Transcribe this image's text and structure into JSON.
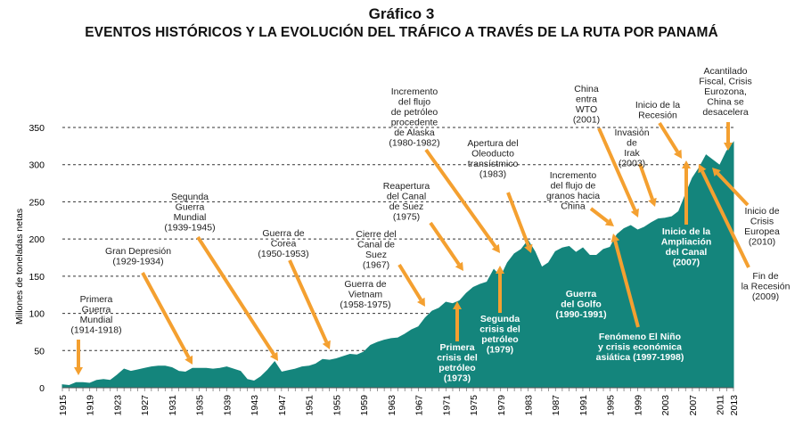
{
  "title": "Gráfico 3",
  "subtitle": "EVENTOS HISTÓRICOS Y LA EVOLUCIÓN DEL TRÁFICO A TRAVÉS DE LA RUTA POR PANAMÁ",
  "colors": {
    "area": "#14857c",
    "arrow": "#f4a030",
    "grid": "#333333"
  },
  "chart_data": {
    "type": "area",
    "ylabel": "Millones de toneladas netas",
    "xlabel": "",
    "xlim": [
      1915,
      2013
    ],
    "ylim": [
      0,
      350
    ],
    "yticks": [
      0,
      50,
      100,
      150,
      200,
      250,
      300,
      350
    ],
    "xticks": [
      1915,
      1919,
      1923,
      1927,
      1931,
      1935,
      1939,
      1943,
      1947,
      1951,
      1955,
      1959,
      1963,
      1967,
      1971,
      1975,
      1979,
      1983,
      1987,
      1991,
      1995,
      1999,
      2003,
      2007,
      2011,
      2013
    ],
    "grid": true,
    "series": [
      {
        "x": [
          1915,
          1916,
          1917,
          1918,
          1919,
          1920,
          1921,
          1922,
          1923,
          1924,
          1925,
          1926,
          1927,
          1928,
          1929,
          1930,
          1931,
          1932,
          1933,
          1934,
          1935,
          1936,
          1937,
          1938,
          1939,
          1940,
          1941,
          1942,
          1943,
          1944,
          1945,
          1946,
          1947,
          1948,
          1949,
          1950,
          1951,
          1952,
          1953,
          1954,
          1955,
          1956,
          1957,
          1958,
          1959,
          1960,
          1961,
          1962,
          1963,
          1964,
          1965,
          1966,
          1967,
          1968,
          1969,
          1970,
          1971,
          1972,
          1973,
          1974,
          1975,
          1976,
          1977,
          1978,
          1979,
          1980,
          1981,
          1982,
          1983,
          1984,
          1985,
          1986,
          1987,
          1988,
          1989,
          1990,
          1991,
          1992,
          1993,
          1994,
          1995,
          1996,
          1997,
          1998,
          1999,
          2000,
          2001,
          2002,
          2003,
          2004,
          2005,
          2006,
          2007,
          2008,
          2009,
          2010,
          2011,
          2012,
          2013
        ],
        "values": [
          4,
          3,
          7,
          7,
          6,
          10,
          11,
          10,
          17,
          25,
          22,
          24,
          26,
          28,
          29,
          29,
          27,
          22,
          21,
          26,
          26,
          26,
          25,
          26,
          28,
          25,
          22,
          11,
          9,
          15,
          24,
          35,
          21,
          23,
          25,
          28,
          29,
          32,
          38,
          37,
          39,
          42,
          45,
          44,
          48,
          57,
          61,
          64,
          66,
          67,
          72,
          78,
          82,
          94,
          103,
          107,
          115,
          113,
          117,
          127,
          135,
          139,
          142,
          159,
          149,
          168,
          180,
          186,
          198,
          183,
          162,
          168,
          183,
          188,
          190,
          182,
          188,
          178,
          178,
          186,
          189,
          206,
          214,
          218,
          212,
          216,
          222,
          227,
          228,
          230,
          237,
          260,
          282,
          296,
          313,
          306,
          299,
          318,
          330
        ]
      }
    ],
    "annotations": [
      {
        "text": [
          "Primera",
          "Guerra",
          "Mundial",
          "(1914-1918)"
        ],
        "year": 1918
      },
      {
        "text": [
          "Gran Depresión",
          "(1929-1934)"
        ],
        "year": 1934
      },
      {
        "text": [
          "Segunda",
          "Guerra",
          "Mundial",
          "(1939-1945)"
        ],
        "year": 1945
      },
      {
        "text": [
          "Guerra de",
          "Corea",
          "(1950-1953)"
        ],
        "year": 1953
      },
      {
        "text": [
          "Cierre del",
          "Canal de",
          "Suez",
          "(1967)"
        ],
        "year": 1967
      },
      {
        "text": [
          "Guerra de",
          "Vietnam",
          "(1958-1975)"
        ],
        "year": 1975
      },
      {
        "text": [
          "Reapertura",
          "del Canal",
          "de Suez",
          "(1975)"
        ],
        "year": 1975
      },
      {
        "text": [
          "Primera",
          "crisis del",
          "petróleo",
          "(1973)"
        ],
        "year": 1973
      },
      {
        "text": [
          "Incremento",
          "del flujo",
          "de petróleo",
          "procedente",
          "de Alaska",
          "(1980-1982)"
        ],
        "year": 1982
      },
      {
        "text": [
          "Segunda",
          "crisis del",
          "petróleo",
          "(1979)"
        ],
        "year": 1979
      },
      {
        "text": [
          "Apertura del",
          "Oleoducto",
          "transístmico",
          "(1983)"
        ],
        "year": 1983
      },
      {
        "text": [
          "Guerra",
          "del Golfo",
          "(1990-1991)"
        ],
        "year": 1991
      },
      {
        "text": [
          "Incremento",
          "del flujo de",
          "granos hacia",
          "China"
        ],
        "year": 1996
      },
      {
        "text": [
          "Fenómeno El Niño",
          "y crisis económica",
          "asiática (1997-1998)"
        ],
        "year": 1998
      },
      {
        "text": [
          "China",
          "entra",
          "WTO",
          "(2001)"
        ],
        "year": 2001
      },
      {
        "text": [
          "Invasión",
          "de",
          "Irak",
          "(2003)"
        ],
        "year": 2003
      },
      {
        "text": [
          "Inicio de la",
          "Recesión"
        ],
        "year": 2008
      },
      {
        "text": [
          "Inicio de la",
          "Ampliación",
          "del Canal",
          "(2007)"
        ],
        "year": 2007
      },
      {
        "text": [
          "Acantilado",
          "Fiscal, Crisis",
          "Eurozona,",
          "China se",
          "desacelera"
        ],
        "year": 2012
      },
      {
        "text": [
          "Inicio de",
          "Crisis",
          "Europea",
          "(2010)"
        ],
        "year": 2010
      },
      {
        "text": [
          "Fin de",
          "la Recesión",
          "(2009)"
        ],
        "year": 2009
      }
    ]
  }
}
